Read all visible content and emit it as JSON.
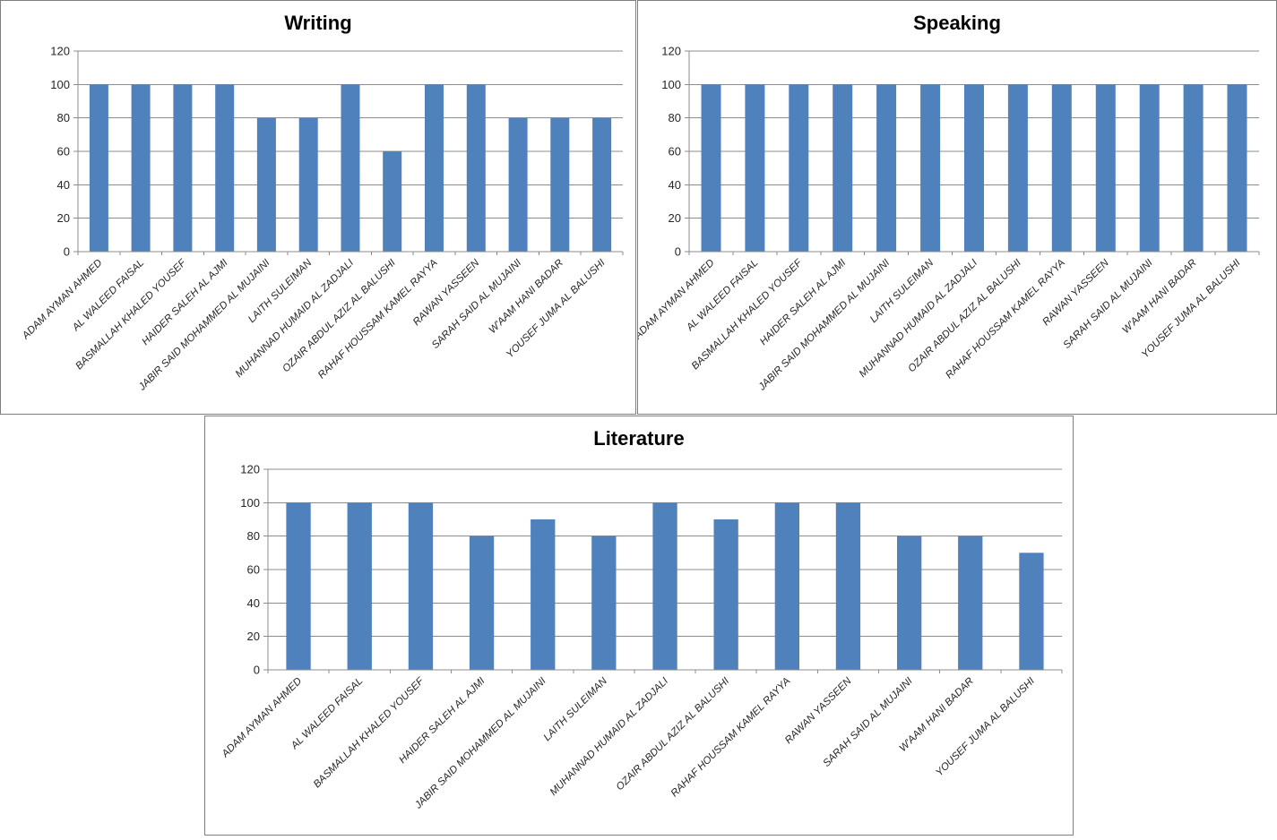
{
  "page": {
    "background": "#FFFFFF"
  },
  "colors": {
    "bar": "#4F81BD",
    "gridline": "#8C8C8C",
    "axis": "#8C8C8C",
    "panel_border": "#7F7F7F",
    "tick_label": "#262626",
    "category_label": "#262626",
    "title": "#000000"
  },
  "chart_data": [
    {
      "type": "bar",
      "title": "Writing",
      "categories": [
        "ADAM AYMAN AHMED",
        "AL WALEED FAISAL",
        "BASMALLAH KHALED YOUSEF",
        "HAIDER SALEH AL AJMI",
        "JABIR SAID MOHAMMED AL MUJAINI",
        "LAITH SULEIMAN",
        "MUHANNAD HUMAID AL ZADJALI",
        "OZAIR ABDUL AZIZ AL BALUSHI",
        "RAHAF HOUSSAM KAMEL RAYYA",
        "RAWAN YASSEEN",
        "SARAH SAID AL MUJAINI",
        "W'AAM HANI BADAR",
        "YOUSEF JUMA AL BALUSHI"
      ],
      "values": [
        100,
        100,
        100,
        100,
        80,
        80,
        100,
        60,
        100,
        100,
        80,
        80,
        80
      ],
      "xlabel": "",
      "ylabel": "",
      "ylim": [
        0,
        120
      ],
      "ytick_step": 20,
      "ytick_labels": [
        "0",
        "20",
        "40",
        "60",
        "80",
        "100",
        "120"
      ],
      "grid": true,
      "legend": "none",
      "bar_color": "#4F81BD"
    },
    {
      "type": "bar",
      "title": "Speaking",
      "categories": [
        "ADAM AYMAN AHMED",
        "AL WALEED FAISAL",
        "BASMALLAH KHALED YOUSEF",
        "HAIDER SALEH AL AJMI",
        "JABIR SAID MOHAMMED AL MUJAINI",
        "LAITH SULEIMAN",
        "MUHANNAD HUMAID AL ZADJALI",
        "OZAIR ABDUL AZIZ AL BALUSHI",
        "RAHAF HOUSSAM KAMEL RAYYA",
        "RAWAN YASSEEN",
        "SARAH SAID AL MUJAINI",
        "W'AAM HANI BADAR",
        "YOUSEF JUMA AL BALUSHI"
      ],
      "values": [
        100,
        100,
        100,
        100,
        100,
        100,
        100,
        100,
        100,
        100,
        100,
        100,
        100
      ],
      "xlabel": "",
      "ylabel": "",
      "ylim": [
        0,
        120
      ],
      "ytick_step": 20,
      "ytick_labels": [
        "0",
        "20",
        "40",
        "60",
        "80",
        "100",
        "120"
      ],
      "grid": true,
      "legend": "none",
      "bar_color": "#4F81BD"
    },
    {
      "type": "bar",
      "title": "Literature",
      "categories": [
        "ADAM AYMAN AHMED",
        "AL WALEED FAISAL",
        "BASMALLAH KHALED YOUSEF",
        "HAIDER SALEH AL AJMI",
        "JABIR SAID MOHAMMED AL MUJAINI",
        "LAITH SULEIMAN",
        "MUHANNAD HUMAID AL ZADJALI",
        "OZAIR ABDUL AZIZ AL BALUSHI",
        "RAHAF HOUSSAM KAMEL RAYYA",
        "RAWAN YASSEEN",
        "SARAH SAID AL MUJAINI",
        "W'AAM HANI BADAR",
        "YOUSEF JUMA AL BALUSHI"
      ],
      "values": [
        100,
        100,
        100,
        80,
        90,
        80,
        100,
        90,
        100,
        100,
        80,
        80,
        70
      ],
      "xlabel": "",
      "ylabel": "",
      "ylim": [
        0,
        120
      ],
      "ytick_step": 20,
      "ytick_labels": [
        "0",
        "20",
        "40",
        "60",
        "80",
        "100",
        "120"
      ],
      "grid": true,
      "legend": "none",
      "bar_color": "#4F81BD"
    }
  ]
}
